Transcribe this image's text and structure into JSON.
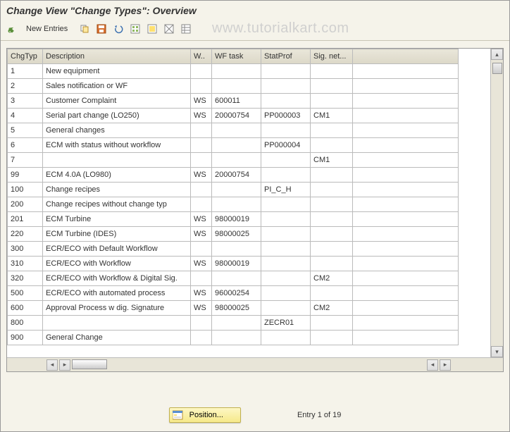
{
  "window": {
    "title": "Change View \"Change Types\": Overview"
  },
  "toolbar": {
    "new_entries": "New Entries"
  },
  "watermark": "www.tutorialkart.com",
  "table": {
    "columns": [
      "ChgTyp",
      "Description",
      "W..",
      "WF task",
      "StatProf",
      "Sig. net..."
    ],
    "rows": [
      {
        "chg": "1",
        "desc": "New equipment",
        "w": "",
        "task": "",
        "stat": "",
        "sig": ""
      },
      {
        "chg": "2",
        "desc": "Sales notification or WF",
        "w": "",
        "task": "",
        "stat": "",
        "sig": ""
      },
      {
        "chg": "3",
        "desc": "Customer Complaint",
        "w": "WS",
        "task": "600011",
        "stat": "",
        "sig": ""
      },
      {
        "chg": "4",
        "desc": "Serial part change (LO250)",
        "w": "WS",
        "task": "20000754",
        "stat": "PP000003",
        "sig": "CM1"
      },
      {
        "chg": "5",
        "desc": "General changes",
        "w": "",
        "task": "",
        "stat": "",
        "sig": ""
      },
      {
        "chg": "6",
        "desc": "ECM with status without workflow",
        "w": "",
        "task": "",
        "stat": "PP000004",
        "sig": ""
      },
      {
        "chg": "7",
        "desc": "",
        "w": "",
        "task": "",
        "stat": "",
        "sig": "CM1"
      },
      {
        "chg": "99",
        "desc": "ECM 4.0A (LO980)",
        "w": "WS",
        "task": "20000754",
        "stat": "",
        "sig": ""
      },
      {
        "chg": "100",
        "desc": "Change recipes",
        "w": "",
        "task": "",
        "stat": "PI_C_H",
        "sig": ""
      },
      {
        "chg": "200",
        "desc": "Change recipes without change typ",
        "w": "",
        "task": "",
        "stat": "",
        "sig": ""
      },
      {
        "chg": "201",
        "desc": "ECM Turbine",
        "w": "WS",
        "task": "98000019",
        "stat": "",
        "sig": ""
      },
      {
        "chg": "220",
        "desc": "ECM Turbine (IDES)",
        "w": "WS",
        "task": "98000025",
        "stat": "",
        "sig": ""
      },
      {
        "chg": "300",
        "desc": "ECR/ECO with Default Workflow",
        "w": "",
        "task": "",
        "stat": "",
        "sig": ""
      },
      {
        "chg": "310",
        "desc": "ECR/ECO with Workflow",
        "w": "WS",
        "task": "98000019",
        "stat": "",
        "sig": ""
      },
      {
        "chg": "320",
        "desc": "ECR/ECO with Workflow  & Digital Sig.",
        "w": "",
        "task": "",
        "stat": "",
        "sig": "CM2"
      },
      {
        "chg": "500",
        "desc": "ECR/ECO with automated process",
        "w": "WS",
        "task": "96000254",
        "stat": "",
        "sig": ""
      },
      {
        "chg": "600",
        "desc": "Approval Process w dig. Signature",
        "w": "WS",
        "task": "98000025",
        "stat": "",
        "sig": "CM2"
      },
      {
        "chg": "800",
        "desc": "",
        "w": "",
        "task": "",
        "stat": "ZECR01",
        "sig": ""
      },
      {
        "chg": "900",
        "desc": "General Change",
        "w": "",
        "task": "",
        "stat": "",
        "sig": ""
      }
    ]
  },
  "footer": {
    "position_label": "Position...",
    "entry_label": "Entry 1 of 19"
  },
  "colors": {
    "bg": "#f5f3ea",
    "header_grad_top": "#e9e6d9",
    "header_grad_bottom": "#dcd8c8",
    "border": "#bbbbbb",
    "button_grad_top": "#fdf7c4",
    "button_grad_bottom": "#f6e98a"
  }
}
